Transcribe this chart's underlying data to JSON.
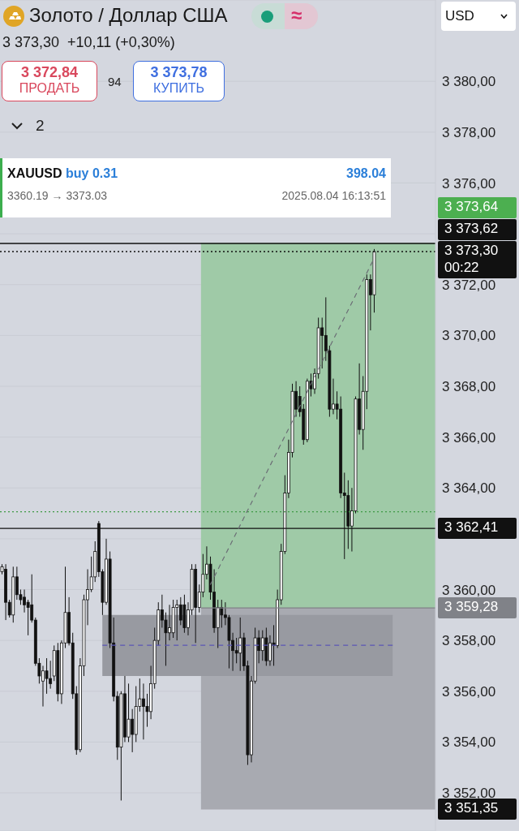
{
  "chart_data": {
    "type": "candlestick",
    "title": "Золото / Доллар США",
    "subtitle": "3 373,30  +10,11 (+0,30%)",
    "annotations": [
      "3 372,84",
      "ПРОДАТЬ",
      "94",
      "3 373,78",
      "КУПИТЬ",
      "2",
      "USD",
      "XAUUSD",
      "buy 0.31",
      "398.04",
      "3360.19 → 3373.03",
      "2025.08.04 16:13:51",
      "00:22",
      "≈"
    ],
    "categories": [
      null,
      null,
      null,
      null,
      null,
      null,
      null,
      null,
      null,
      null,
      null,
      null,
      null,
      null,
      null,
      null,
      null,
      null,
      null,
      null,
      null,
      null,
      null,
      null,
      null,
      null,
      null,
      null,
      null,
      null,
      null,
      null,
      null,
      null,
      null,
      null,
      null,
      null,
      null,
      null,
      null,
      null,
      null,
      null,
      null,
      null,
      null,
      null,
      null,
      null,
      null,
      null,
      null,
      null,
      null,
      null,
      null,
      null,
      null,
      null,
      null,
      null,
      null,
      null,
      null,
      null,
      null,
      null,
      null,
      null,
      null,
      null,
      null,
      null,
      null,
      null,
      null,
      null,
      null,
      null,
      null,
      null,
      null,
      null,
      null,
      null,
      null,
      null,
      null,
      null,
      null,
      null,
      null,
      null,
      null,
      null,
      null,
      null,
      null,
      null,
      null,
      null,
      null,
      null,
      null,
      null,
      null,
      null,
      null,
      null,
      null,
      null,
      null,
      null,
      null,
      null,
      null
    ],
    "ohlc": [
      [
        3360.7,
        3361.0,
        3360.6,
        3360.9
      ],
      [
        3360.8,
        3361.0,
        3358.8,
        3359.5
      ],
      [
        3359.5,
        3359.6,
        3358.9,
        3359.0
      ],
      [
        3359.0,
        3360.9,
        3358.7,
        3360.5
      ],
      [
        3360.5,
        3360.9,
        3359.6,
        3359.8
      ],
      [
        3359.8,
        3360.0,
        3359.4,
        3359.6
      ],
      [
        3359.7,
        3360.0,
        3359.1,
        3359.4
      ],
      [
        3359.5,
        3359.6,
        3358.2,
        3359.3
      ],
      [
        3359.4,
        3360.6,
        3358.7,
        3358.8
      ],
      [
        3358.8,
        3358.9,
        3357.0,
        3357.1
      ],
      [
        3357.1,
        3357.3,
        3356.3,
        3356.6
      ],
      [
        3356.4,
        3357.0,
        3355.4,
        3356.8
      ],
      [
        3356.8,
        3357.3,
        3355.9,
        3356.5
      ],
      [
        3356.5,
        3357.2,
        3356.1,
        3356.3
      ],
      [
        3356.6,
        3357.8,
        3356.4,
        3357.6
      ],
      [
        3357.6,
        3357.9,
        3355.6,
        3355.9
      ],
      [
        3355.9,
        3358.0,
        3355.5,
        3357.9
      ],
      [
        3357.9,
        3360.9,
        3357.7,
        3359.1
      ],
      [
        3359.1,
        3359.7,
        3357.8,
        3357.9
      ],
      [
        3357.9,
        3358.3,
        3355.7,
        3355.9
      ],
      [
        3355.9,
        3356.2,
        3353.5,
        3353.7
      ],
      [
        3353.7,
        3357.3,
        3353.6,
        3357.0
      ],
      [
        3357.0,
        3359.8,
        3356.6,
        3359.6
      ],
      [
        3359.6,
        3360.8,
        3358.6,
        3360.0
      ],
      [
        3360.0,
        3361.3,
        3359.9,
        3360.5
      ],
      [
        3360.5,
        3361.9,
        3360.3,
        3361.5
      ],
      [
        3362.6,
        3362.7,
        3360.5,
        3360.7
      ],
      [
        3360.7,
        3360.8,
        3359.0,
        3359.5
      ],
      [
        3359.5,
        3362.0,
        3359.4,
        3361.2
      ],
      [
        3361.2,
        3361.5,
        3357.7,
        3357.9
      ],
      [
        3357.9,
        3358.9,
        3355.6,
        3355.8
      ],
      [
        3355.8,
        3356.0,
        3353.3,
        3353.8
      ],
      [
        3353.8,
        3356.0,
        3351.7,
        3355.9
      ],
      [
        3355.9,
        3356.6,
        3354.0,
        3354.2
      ],
      [
        3354.2,
        3356.3,
        3354.0,
        3354.9
      ],
      [
        3354.9,
        3355.3,
        3353.6,
        3354.3
      ],
      [
        3354.3,
        3356.2,
        3354.0,
        3355.4
      ],
      [
        3355.4,
        3356.5,
        3355.2,
        3355.7
      ],
      [
        3355.7,
        3356.3,
        3354.1,
        3355.4
      ],
      [
        3355.4,
        3355.9,
        3354.6,
        3355.2
      ],
      [
        3355.2,
        3357.0,
        3354.9,
        3356.3
      ],
      [
        3356.3,
        3358.5,
        3356.1,
        3358.0
      ],
      [
        3358.0,
        3359.5,
        3357.8,
        3359.2
      ],
      [
        3359.2,
        3359.8,
        3358.5,
        3358.8
      ],
      [
        3358.8,
        3359.1,
        3357.0,
        3358.3
      ],
      [
        3358.3,
        3359.4,
        3358.0,
        3358.5
      ],
      [
        3358.3,
        3359.6,
        3358.1,
        3359.3
      ],
      [
        3359.3,
        3359.6,
        3358.0,
        3359.4
      ],
      [
        3359.4,
        3359.7,
        3358.6,
        3358.8
      ],
      [
        3359.4,
        3359.8,
        3358.3,
        3358.5
      ],
      [
        3358.5,
        3359.5,
        3358.2,
        3359.2
      ],
      [
        3359.2,
        3361.0,
        3359.0,
        3360.8
      ],
      [
        3360.8,
        3361.0,
        3357.9,
        3359.3
      ],
      [
        3359.3,
        3360.2,
        3359.1,
        3359.9
      ],
      [
        3359.9,
        3361.4,
        3359.7,
        3360.6
      ],
      [
        3360.6,
        3361.7,
        3360.4,
        3361.0
      ],
      [
        3361.0,
        3361.3,
        3359.6,
        3359.9
      ],
      [
        3359.9,
        3360.8,
        3358.3,
        3358.5
      ],
      [
        3358.5,
        3359.6,
        3357.7,
        3359.3
      ],
      [
        3359.3,
        3359.6,
        3358.5,
        3359.0
      ],
      [
        3359.0,
        3359.5,
        3358.6,
        3358.9
      ],
      [
        3358.9,
        3359.0,
        3356.9,
        3358.0
      ],
      [
        3358.0,
        3358.3,
        3356.8,
        3357.6
      ],
      [
        3357.6,
        3358.1,
        3357.1,
        3357.5
      ],
      [
        3357.5,
        3358.9,
        3356.8,
        3358.1
      ],
      [
        3358.1,
        3358.3,
        3356.8,
        3357.0
      ],
      [
        3357.0,
        3357.2,
        3353.1,
        3353.5
      ],
      [
        3353.5,
        3356.6,
        3353.2,
        3356.4
      ],
      [
        3356.4,
        3358.5,
        3356.3,
        3358.1
      ],
      [
        3358.1,
        3358.4,
        3357.1,
        3357.6
      ],
      [
        3357.6,
        3358.4,
        3357.2,
        3358.1
      ],
      [
        3358.1,
        3358.5,
        3357.0,
        3357.2
      ],
      [
        3357.2,
        3358.2,
        3357.0,
        3357.9
      ],
      [
        3357.9,
        3358.6,
        3357.0,
        3357.8
      ],
      [
        3357.8,
        3360.0,
        3357.7,
        3359.6
      ],
      [
        3359.6,
        3361.8,
        3359.4,
        3361.5
      ],
      [
        3361.5,
        3364.5,
        3361.4,
        3363.8
      ],
      [
        3363.8,
        3365.9,
        3363.6,
        3365.4
      ],
      [
        3365.4,
        3368.1,
        3365.2,
        3367.8
      ],
      [
        3367.8,
        3368.2,
        3366.8,
        3367.1
      ],
      [
        3367.6,
        3368.0,
        3366.8,
        3367.0
      ],
      [
        3367.1,
        3367.3,
        3365.7,
        3365.9
      ],
      [
        3365.9,
        3368.3,
        3365.8,
        3368.2
      ],
      [
        3368.2,
        3368.5,
        3367.6,
        3367.9
      ],
      [
        3367.9,
        3368.7,
        3367.7,
        3368.5
      ],
      [
        3368.5,
        3370.7,
        3368.3,
        3370.3
      ],
      [
        3370.3,
        3370.7,
        3368.7,
        3370.0
      ],
      [
        3370.0,
        3371.5,
        3369.0,
        3369.4
      ],
      [
        3369.4,
        3369.6,
        3366.8,
        3367.1
      ],
      [
        3367.1,
        3368.3,
        3366.9,
        3367.3
      ],
      [
        3367.3,
        3367.8,
        3366.7,
        3367.1
      ],
      [
        3367.1,
        3367.6,
        3363.6,
        3363.8
      ],
      [
        3363.8,
        3364.6,
        3361.2,
        3363.7
      ],
      [
        3363.7,
        3364.3,
        3361.6,
        3362.5
      ],
      [
        3362.5,
        3364.0,
        3361.5,
        3363.1
      ],
      [
        3363.1,
        3367.6,
        3363.0,
        3367.5
      ],
      [
        3367.5,
        3368.9,
        3366.1,
        3366.3
      ],
      [
        3366.3,
        3368.4,
        3365.5,
        3367.8
      ],
      [
        3367.8,
        3372.4,
        3367.1,
        3372.2
      ],
      [
        3372.2,
        3372.4,
        3370.2,
        3371.6
      ],
      [
        3371.6,
        3373.4,
        3370.9,
        3373.3
      ],
      null,
      null,
      null,
      null,
      null,
      null,
      null,
      null,
      null,
      null,
      null,
      null,
      null,
      null,
      null,
      null
    ],
    "series": [
      {
        "type": "line",
        "color": "#6b6e75",
        "line_style": "dashed",
        "values": [
          null,
          null,
          null,
          null,
          null,
          null,
          null,
          null,
          null,
          null,
          null,
          null,
          null,
          null,
          null,
          null,
          null,
          null,
          null,
          null,
          null,
          null,
          null,
          null,
          null,
          null,
          null,
          null,
          null,
          null,
          null,
          null,
          null,
          null,
          null,
          null,
          null,
          null,
          null,
          null,
          null,
          null,
          null,
          null,
          null,
          null,
          null,
          null,
          null,
          null,
          null,
          null,
          null,
          null,
          null,
          null,
          3360.19,
          null,
          null,
          null,
          null,
          null,
          null,
          null,
          null,
          null,
          null,
          null,
          null,
          null,
          null,
          null,
          null,
          null,
          null,
          null,
          null,
          null,
          null,
          null,
          null,
          null,
          null,
          null,
          null,
          null,
          null,
          null,
          null,
          null,
          null,
          null,
          null,
          null,
          null,
          null,
          null,
          null,
          null,
          null,
          3373.03,
          null,
          null,
          null,
          null,
          null,
          null,
          null,
          null,
          null,
          null,
          null,
          null,
          null,
          null,
          null,
          null
        ]
      }
    ],
    "ylim": [
      3350.5,
      3383.2
    ],
    "yticks": [
      {
        "value": 3352,
        "label": "3 352,00"
      },
      {
        "value": 3354,
        "label": "3 354,00"
      },
      {
        "value": 3356,
        "label": "3 356,00"
      },
      {
        "value": 3358,
        "label": "3 358,00"
      },
      {
        "value": 3360,
        "label": "3 360,00"
      },
      {
        "value": 3362,
        "label": null
      },
      {
        "value": 3364,
        "label": "3 364,00"
      },
      {
        "value": 3366,
        "label": "3 366,00"
      },
      {
        "value": 3368,
        "label": "3 368,00"
      },
      {
        "value": 3370,
        "label": "3 370,00"
      },
      {
        "value": 3372,
        "label": "3 372,00"
      },
      {
        "value": 3374,
        "label": null
      },
      {
        "value": 3376,
        "label": "3 376,00"
      },
      {
        "value": 3378,
        "label": "3 378,00"
      },
      {
        "value": 3380,
        "label": "3 380,00"
      }
    ],
    "bands": [
      {
        "axis": "y",
        "from": 3359.28,
        "to": 3373.64,
        "label": "3 373,64",
        "color": "#9fcaa7"
      },
      {
        "axis": "y",
        "from": 3351.35,
        "to": 3359.28,
        "label": "3 351,35",
        "color": "#a8aab1"
      },
      {
        "axis": "y",
        "from": 3356.6,
        "to": 3359.0,
        "color": "#989aa1"
      }
    ],
    "ref_lines": [
      {
        "axis": "y",
        "value": 3373.62,
        "label": "3 373,62",
        "color": "#111111",
        "line_style": "solid"
      },
      {
        "axis": "y",
        "value": 3373.3,
        "label": "3 373,30",
        "color": "#111111",
        "line_style": "dotted"
      },
      {
        "axis": "y",
        "value": 3363.06,
        "color": "#3f9a45",
        "line_style": "dotted"
      },
      {
        "axis": "y",
        "value": 3362.41,
        "label": "3 362,41",
        "color": "#111111",
        "line_style": "solid"
      },
      {
        "axis": "y",
        "value": 3359.28,
        "label": "3 359,28",
        "color": "#808288",
        "line_style": "solid"
      },
      {
        "axis": "y",
        "value": 3357.81,
        "color": "#5b56b5",
        "line_style": "dashed"
      }
    ],
    "grid": "y",
    "tick_labels": "y"
  }
}
